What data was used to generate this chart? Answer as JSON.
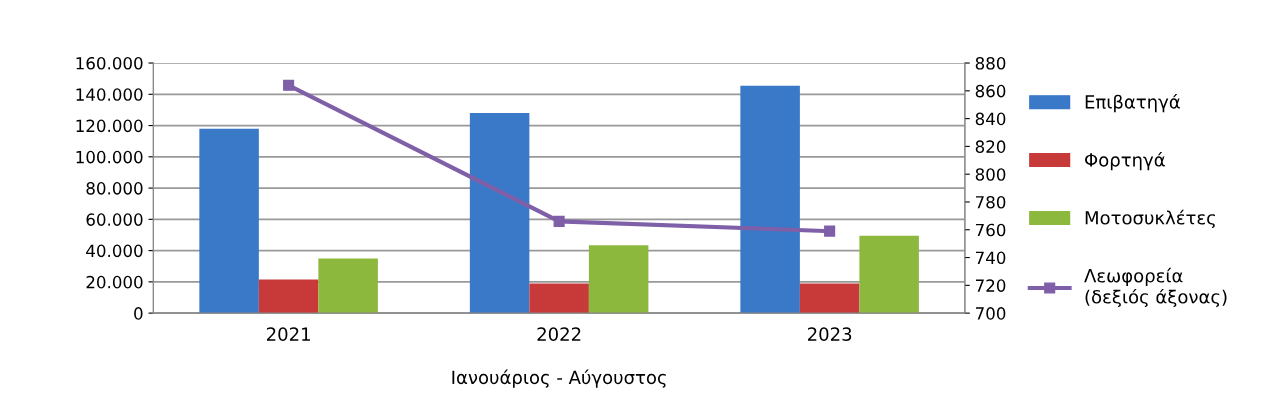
{
  "chart_data": {
    "type": "bar",
    "xlabel": "Ιανουάριος - Αύγουστος",
    "categories": [
      "2021",
      "2022",
      "2023"
    ],
    "series": [
      {
        "name": "Επιβατηγά",
        "color": "#3a78c8",
        "values": [
          118000,
          128000,
          145500
        ]
      },
      {
        "name": "Φορτηγά",
        "color": "#c83a3a",
        "values": [
          21500,
          19000,
          19000
        ]
      },
      {
        "name": "Μοτοσυκλέτες",
        "color": "#8db83e",
        "values": [
          35000,
          43500,
          49500
        ]
      },
      {
        "name": "Λεωφορεία\n(δεξιός άξονας)",
        "color": "#7f5fa8",
        "type": "line",
        "axis": "y2",
        "marker": "square",
        "values": [
          864,
          766,
          759
        ]
      }
    ],
    "ylim": [
      0,
      160000
    ],
    "yticks": [
      0,
      {
        "value": 20000,
        "label": "20.000"
      },
      {
        "value": 40000,
        "label": "40.000"
      },
      {
        "value": 60000,
        "label": "60.000"
      },
      {
        "value": 80000,
        "label": "80.000"
      },
      {
        "value": 100000,
        "label": "100.000"
      },
      {
        "value": 120000,
        "label": "120.000"
      },
      {
        "value": 140000,
        "label": "140.000"
      },
      {
        "value": 160000,
        "label": "160.000"
      }
    ],
    "y2lim": [
      700,
      880
    ],
    "y2ticks": [
      700,
      720,
      740,
      760,
      780,
      800,
      820,
      840,
      860,
      880
    ],
    "grid": "y",
    "legend": "right"
  }
}
